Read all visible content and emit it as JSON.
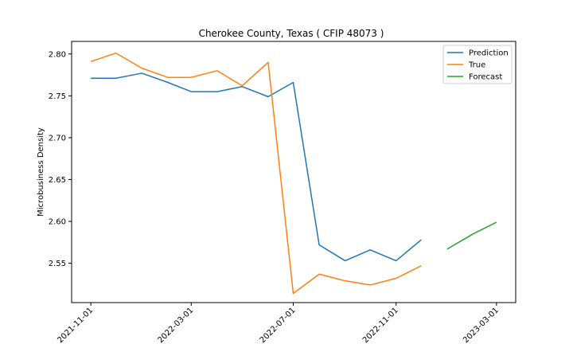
{
  "chart_data": {
    "type": "line",
    "title": "Cherokee County, Texas ( CFIP 48073 )",
    "xlabel": "",
    "ylabel": "Microbusiness Density",
    "ylim": [
      2.503,
      2.815
    ],
    "xlim": [
      "2021-10-09",
      "2023-03-24"
    ],
    "grid": false,
    "legend_position": "top-right",
    "x_ticks": [
      "2021-11-01",
      "2022-03-01",
      "2022-07-01",
      "2022-11-01",
      "2023-03-01"
    ],
    "y_ticks": [
      2.55,
      2.6,
      2.65,
      2.7,
      2.75,
      2.8
    ],
    "series": [
      {
        "name": "Prediction",
        "color": "#1f77b4",
        "x": [
          "2021-11-01",
          "2021-12-01",
          "2022-01-01",
          "2022-02-01",
          "2022-03-01",
          "2022-04-01",
          "2022-05-01",
          "2022-06-01",
          "2022-07-01",
          "2022-08-01",
          "2022-09-01",
          "2022-10-01",
          "2022-11-01",
          "2022-12-01"
        ],
        "values": [
          2.771,
          2.771,
          2.777,
          2.766,
          2.755,
          2.755,
          2.761,
          2.749,
          2.766,
          2.572,
          2.553,
          2.566,
          2.553,
          2.578
        ]
      },
      {
        "name": "True",
        "color": "#ff7f0e",
        "x": [
          "2021-11-01",
          "2021-12-01",
          "2022-01-01",
          "2022-02-01",
          "2022-03-01",
          "2022-04-01",
          "2022-05-01",
          "2022-06-01",
          "2022-07-01",
          "2022-08-01",
          "2022-09-01",
          "2022-10-01",
          "2022-11-01",
          "2022-12-01"
        ],
        "values": [
          2.791,
          2.801,
          2.783,
          2.772,
          2.772,
          2.78,
          2.762,
          2.79,
          2.514,
          2.537,
          2.529,
          2.524,
          2.532,
          2.547
        ]
      },
      {
        "name": "Forecast",
        "color": "#2ca02c",
        "x": [
          "2023-01-01",
          "2023-02-01",
          "2023-03-01"
        ],
        "values": [
          2.567,
          2.585,
          2.599
        ]
      }
    ]
  }
}
